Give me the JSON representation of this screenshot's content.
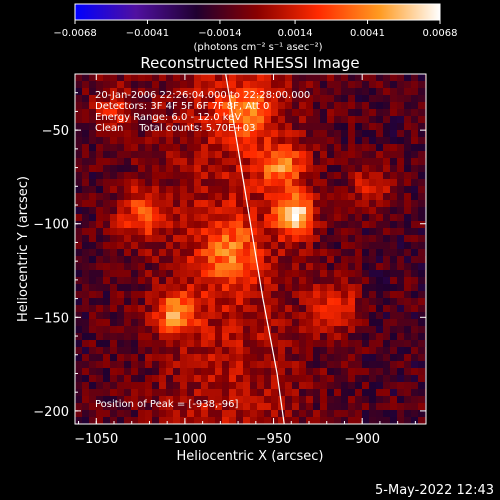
{
  "chart_data": {
    "type": "heatmap",
    "title": "Reconstructed RHESSI Image",
    "xlabel": "Heliocentric X (arcsec)",
    "ylabel": "Heliocentric Y (arcsec)",
    "xlim": [
      -1062,
      -864
    ],
    "ylim": [
      -207,
      -20
    ],
    "x_ticks": [
      -1050,
      -1000,
      -950,
      -900
    ],
    "x_tick_labels": [
      "−1050",
      "−1000",
      "−950",
      "−900"
    ],
    "y_ticks": [
      -50,
      -100,
      -150,
      -200
    ],
    "y_tick_labels": [
      "−50",
      "−100",
      "−150",
      "−200"
    ],
    "colorbar": {
      "min": -0.0068,
      "max": 0.0068,
      "tick_values": [
        -0.0068,
        -0.0041,
        -0.0014,
        0.0014,
        0.0041,
        0.0068
      ],
      "tick_labels": [
        "−0.0068",
        "−0.0041",
        "−0.0014",
        "0.0014",
        "0.0041",
        "0.0068"
      ],
      "units_label": "(photons cm⁻² s⁻¹ asec⁻²)",
      "colors": [
        "#0000ff",
        "#5010a0",
        "#200030",
        "#8a0000",
        "#ff2a00",
        "#ff9a20",
        "#ffffff"
      ]
    },
    "annotations": [
      "20-Jan-2006 22:26:04.000 to 22:28:00.000",
      "Detectors: 3F 4F 5F 6F 7F 8F, Att 0",
      "Energy Range: 6.0 - 12.0 keV",
      "Clean     Total counts: 5.70E+03"
    ],
    "peak_label": "Position of Peak = [-938,-96]",
    "peak": {
      "x": -938,
      "y": -96
    },
    "limb_curve": [
      [
        -977,
        -20
      ],
      [
        -970,
        -60
      ],
      [
        -963,
        -100
      ],
      [
        -956,
        -140
      ],
      [
        -948,
        -180
      ],
      [
        -944,
        -207
      ]
    ],
    "sources": [
      {
        "x": -938,
        "y": -96,
        "amp": 1.0,
        "sigma": 7
      },
      {
        "x": -945,
        "y": -70,
        "amp": 0.55,
        "sigma": 9
      },
      {
        "x": -1005,
        "y": -148,
        "amp": 0.62,
        "sigma": 8
      },
      {
        "x": -915,
        "y": -145,
        "amp": 0.5,
        "sigma": 9
      },
      {
        "x": -1025,
        "y": -95,
        "amp": 0.45,
        "sigma": 10
      },
      {
        "x": -975,
        "y": -115,
        "amp": 0.42,
        "sigma": 12
      },
      {
        "x": -965,
        "y": -40,
        "amp": 0.45,
        "sigma": 10
      },
      {
        "x": -895,
        "y": -80,
        "amp": 0.35,
        "sigma": 9
      },
      {
        "x": -1040,
        "y": -40,
        "amp": 0.35,
        "sigma": 9
      }
    ],
    "grid": false
  },
  "footer": {
    "timestamp": "5-May-2022 12:43"
  }
}
